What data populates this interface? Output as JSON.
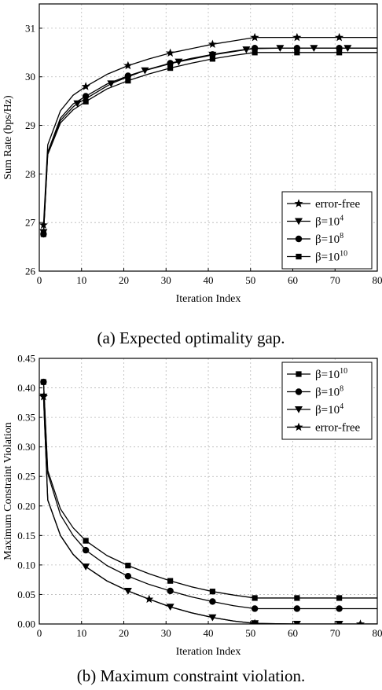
{
  "chart_data": [
    {
      "type": "line",
      "caption": "(a) Expected optimality gap.",
      "xlabel": "Iteration Index",
      "ylabel": "Sum Rate  (bps/Hz)",
      "xlim": [
        0,
        80
      ],
      "ylim": [
        26,
        31.5
      ],
      "xticks": [
        0,
        10,
        20,
        30,
        40,
        50,
        60,
        70,
        80
      ],
      "yticks": [
        26,
        27,
        28,
        29,
        30,
        31
      ],
      "grid": true,
      "legend_position": "bottom-right",
      "series": [
        {
          "name": "error-free",
          "marker": "star",
          "x": [
            1,
            2,
            5,
            8,
            11,
            16,
            21,
            26,
            31,
            36,
            41,
            46,
            51,
            61,
            71,
            80
          ],
          "y": [
            26.95,
            28.6,
            29.3,
            29.62,
            29.8,
            30.05,
            30.23,
            30.37,
            30.49,
            30.58,
            30.67,
            30.74,
            30.81,
            30.81,
            30.81,
            30.81
          ],
          "marker_x": [
            1,
            11,
            21,
            31,
            41,
            51,
            61,
            71
          ]
        },
        {
          "name": "β=10⁴",
          "marker": "triangle-down",
          "x": [
            1,
            2,
            5,
            8,
            9,
            11,
            17,
            21,
            25,
            31,
            33,
            41,
            49,
            51,
            57,
            65,
            73,
            80
          ],
          "y": [
            26.8,
            28.45,
            29.1,
            29.38,
            29.45,
            29.55,
            29.86,
            30.0,
            30.13,
            30.27,
            30.31,
            30.45,
            30.56,
            30.58,
            30.59,
            30.59,
            30.59,
            30.59
          ],
          "marker_x": [
            1,
            9,
            17,
            25,
            33,
            41,
            49,
            57,
            65,
            73
          ]
        },
        {
          "name": "β=10⁸",
          "marker": "circle",
          "x": [
            1,
            2,
            5,
            8,
            11,
            16,
            21,
            26,
            31,
            36,
            41,
            46,
            51,
            61,
            71,
            80
          ],
          "y": [
            26.76,
            28.45,
            29.15,
            29.44,
            29.6,
            29.85,
            30.02,
            30.16,
            30.28,
            30.38,
            30.46,
            30.53,
            30.59,
            30.59,
            30.59,
            30.59
          ],
          "marker_x": [
            1,
            11,
            21,
            31,
            41,
            51,
            61,
            71
          ]
        },
        {
          "name": "β=10¹⁰",
          "marker": "square",
          "x": [
            1,
            2,
            5,
            8,
            11,
            16,
            21,
            26,
            31,
            36,
            41,
            46,
            51,
            61,
            71,
            80
          ],
          "y": [
            26.76,
            28.4,
            29.05,
            29.32,
            29.49,
            29.75,
            29.92,
            30.06,
            30.18,
            30.28,
            30.37,
            30.44,
            30.5,
            30.5,
            30.5,
            30.5
          ],
          "marker_x": [
            1,
            11,
            21,
            31,
            41,
            51,
            61,
            71
          ]
        }
      ],
      "legend_entries": [
        {
          "label": "error-free",
          "base": "error-free",
          "sup": "",
          "marker": "star"
        },
        {
          "label": "β=10⁴",
          "base": "β=10",
          "sup": "4",
          "marker": "triangle-down"
        },
        {
          "label": "β=10⁸",
          "base": "β=10",
          "sup": "8",
          "marker": "circle"
        },
        {
          "label": "β=10¹⁰",
          "base": "β=10",
          "sup": "10",
          "marker": "square"
        }
      ]
    },
    {
      "type": "line",
      "caption": "(b) Maximum constraint violation.",
      "xlabel": "Iteration Index",
      "ylabel": "Maximum Constraint Violation",
      "xlim": [
        0,
        80
      ],
      "ylim": [
        0,
        0.45
      ],
      "xticks": [
        0,
        10,
        20,
        30,
        40,
        50,
        60,
        70,
        80
      ],
      "yticks": [
        0.0,
        0.05,
        0.1,
        0.15,
        0.2,
        0.25,
        0.3,
        0.35,
        0.4,
        0.45
      ],
      "ytick_labels": [
        "0.00",
        "0.05",
        "0.10",
        "0.15",
        "0.20",
        "0.25",
        "0.30",
        "0.35",
        "0.40",
        "0.45"
      ],
      "grid": true,
      "legend_position": "top-right",
      "series": [
        {
          "name": "β=10¹⁰",
          "marker": "square",
          "x": [
            1,
            2,
            5,
            8,
            11,
            16,
            21,
            26,
            31,
            36,
            41,
            46,
            51,
            61,
            71,
            80
          ],
          "y": [
            0.41,
            0.26,
            0.195,
            0.163,
            0.141,
            0.116,
            0.099,
            0.085,
            0.073,
            0.063,
            0.055,
            0.049,
            0.044,
            0.044,
            0.044,
            0.044
          ],
          "marker_x": [
            1,
            11,
            21,
            31,
            41,
            51,
            61,
            71
          ]
        },
        {
          "name": "β=10⁸",
          "marker": "circle",
          "x": [
            1,
            2,
            5,
            8,
            11,
            16,
            21,
            26,
            31,
            36,
            41,
            46,
            51,
            61,
            71,
            80
          ],
          "y": [
            0.41,
            0.255,
            0.185,
            0.15,
            0.125,
            0.099,
            0.081,
            0.067,
            0.056,
            0.046,
            0.038,
            0.031,
            0.026,
            0.026,
            0.026,
            0.026
          ],
          "marker_x": [
            1,
            11,
            21,
            31,
            41,
            51,
            61,
            71
          ]
        },
        {
          "name": "β=10⁴",
          "marker": "triangle-down",
          "x": [
            1,
            2,
            5,
            8,
            11,
            16,
            21,
            26,
            31,
            36,
            41,
            46,
            51,
            61,
            71,
            80
          ],
          "y": [
            0.385,
            0.21,
            0.15,
            0.118,
            0.097,
            0.073,
            0.056,
            0.042,
            0.029,
            0.019,
            0.011,
            0.005,
            0.001,
            0.0,
            0.0,
            0.0
          ],
          "marker_x": [
            1,
            11,
            21,
            31,
            41,
            51,
            61,
            71
          ]
        },
        {
          "name": "error-free",
          "marker": "star",
          "x": [
            1,
            2,
            5,
            8,
            11,
            16,
            21,
            26,
            31,
            36,
            41,
            46,
            51,
            61,
            71,
            80
          ],
          "y": [
            0.385,
            0.21,
            0.15,
            0.118,
            0.097,
            0.073,
            0.056,
            0.042,
            0.029,
            0.019,
            0.011,
            0.005,
            0.001,
            0.0,
            0.0,
            0.0
          ],
          "marker_x": [
            1,
            26,
            51,
            76
          ]
        }
      ],
      "legend_entries": [
        {
          "label": "β=10¹⁰",
          "base": "β=10",
          "sup": "10",
          "marker": "square"
        },
        {
          "label": "β=10⁸",
          "base": "β=10",
          "sup": "8",
          "marker": "circle"
        },
        {
          "label": "β=10⁴",
          "base": "β=10",
          "sup": "4",
          "marker": "triangle-down"
        },
        {
          "label": "error-free",
          "base": "error-free",
          "sup": "",
          "marker": "star"
        }
      ]
    }
  ]
}
